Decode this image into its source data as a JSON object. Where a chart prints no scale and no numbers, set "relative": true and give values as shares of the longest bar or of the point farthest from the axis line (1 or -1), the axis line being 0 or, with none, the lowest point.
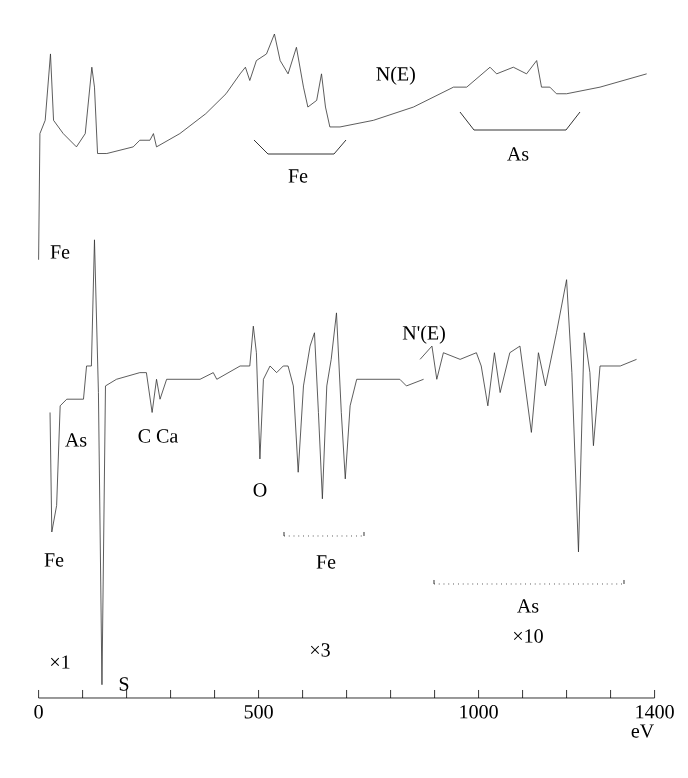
{
  "chart_data": {
    "type": "line",
    "relative": true,
    "xlabel": "eV",
    "xlim": [
      0,
      1400
    ],
    "xticks": [
      0,
      {
        "value": 100,
        "label": null
      },
      {
        "value": 200,
        "label": null
      },
      {
        "value": 300,
        "label": null
      },
      {
        "value": 400,
        "label": null
      },
      500,
      {
        "value": 600,
        "label": null
      },
      {
        "value": 700,
        "label": null
      },
      {
        "value": 800,
        "label": null
      },
      {
        "value": 900,
        "label": null
      },
      1000,
      {
        "value": 1100,
        "label": null
      },
      {
        "value": 1200,
        "label": null
      },
      {
        "value": 1300,
        "label": null
      },
      1400
    ],
    "marker": "none",
    "line_style": "solid",
    "series": [
      {
        "name": "N(E)",
        "color": "#333333",
        "x": [
          0,
          3,
          15,
          27,
          34,
          56,
          86,
          106,
          121,
          127,
          134,
          155,
          215,
          230,
          253,
          261,
          268,
          321,
          380,
          426,
          458,
          470,
          480,
          495,
          518,
          536,
          549,
          567,
          586,
          602,
          612,
          632,
          643,
          652,
          662,
          685,
          761,
          852,
          943,
          973,
          1026,
          1041,
          1079,
          1109,
          1132,
          1143,
          1162,
          1177,
          1200,
          1276,
          1382
        ],
        "values": [
          0.66,
          0.85,
          0.87,
          0.97,
          0.87,
          0.85,
          0.83,
          0.85,
          0.95,
          0.92,
          0.82,
          0.82,
          0.83,
          0.84,
          0.84,
          0.85,
          0.83,
          0.85,
          0.88,
          0.91,
          0.94,
          0.95,
          0.93,
          0.96,
          0.97,
          1.0,
          0.96,
          0.94,
          0.98,
          0.92,
          0.89,
          0.9,
          0.94,
          0.89,
          0.86,
          0.86,
          0.87,
          0.89,
          0.92,
          0.92,
          0.95,
          0.94,
          0.95,
          0.94,
          0.96,
          0.92,
          0.92,
          0.91,
          0.91,
          0.92,
          0.94
        ]
      },
      {
        "name": "N'(E)",
        "color": "#333333",
        "x": [
          26,
          30,
          41,
          49,
          64,
          102,
          109,
          120,
          127,
          136,
          144,
          152,
          177,
          230,
          245,
          258,
          268,
          276,
          291,
          367,
          397,
          405,
          458,
          480,
          488,
          495,
          503,
          511,
          526,
          541,
          556,
          567,
          579,
          590,
          602,
          617,
          627,
          636,
          645,
          655,
          665,
          677,
          688,
          697,
          708,
          723,
          761,
          821,
          836,
          875,
          871,
          867,
          894,
          905,
          920,
          958,
          995,
          1006,
          1021,
          1036,
          1049,
          1071,
          1094,
          1120,
          1136,
          1152,
          1177,
          1200,
          1212,
          1227,
          1240,
          1253,
          1261,
          1276,
          1322,
          1359
        ],
        "values": [
          0.43,
          0.25,
          0.29,
          0.44,
          0.45,
          0.45,
          0.5,
          0.5,
          0.69,
          0.46,
          0.02,
          0.47,
          0.48,
          0.49,
          0.49,
          0.43,
          0.48,
          0.45,
          0.48,
          0.48,
          0.49,
          0.48,
          0.5,
          0.5,
          0.56,
          0.52,
          0.36,
          0.48,
          0.5,
          0.49,
          0.5,
          0.5,
          0.47,
          0.34,
          0.47,
          0.53,
          0.55,
          0.43,
          0.3,
          0.47,
          0.51,
          0.58,
          0.43,
          0.33,
          0.44,
          0.48,
          0.48,
          0.48,
          0.47,
          0.48,
          null,
          0.51,
          0.53,
          0.48,
          0.52,
          0.51,
          0.52,
          0.5,
          0.44,
          0.52,
          0.46,
          0.52,
          0.53,
          0.4,
          0.52,
          0.47,
          0.55,
          0.63,
          0.49,
          0.22,
          0.55,
          0.49,
          0.38,
          0.5,
          0.5,
          0.51
        ]
      }
    ],
    "annotations": [
      "Fe",
      "As",
      "C Ca",
      "O",
      "Fe",
      "S",
      "×1",
      "×3",
      "×10",
      "Fe",
      "As",
      "Fe",
      "As"
    ]
  }
}
